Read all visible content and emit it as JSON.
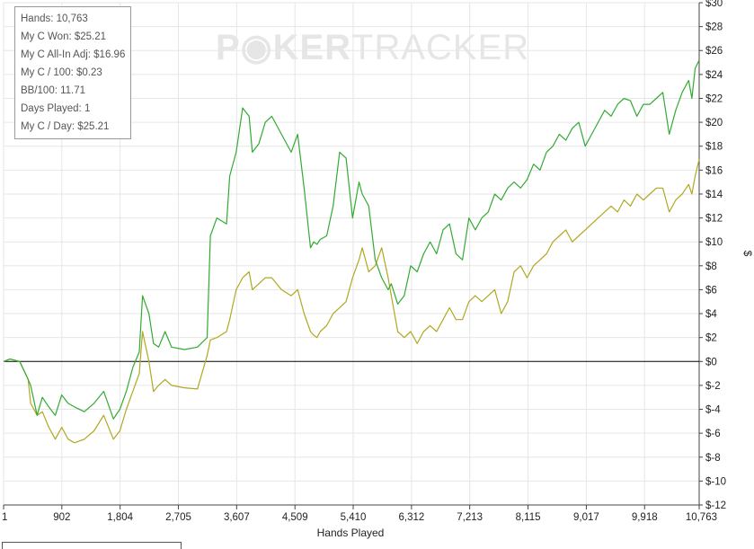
{
  "watermark": {
    "part1": "P",
    "part2": "KER",
    "part3": "TRACKER"
  },
  "stats": {
    "hands": "Hands: 10,763",
    "won": "My C Won: $25.21",
    "allin": "My C All-In Adj: $16.96",
    "per100": "My C / 100: $0.23",
    "bb100": "BB/100: 11.71",
    "days": "Days Played: 1",
    "perday": "My C / Day: $25.21"
  },
  "chart_data": {
    "type": "line",
    "xlabel": "Hands Played",
    "ylabel": "$",
    "xlim": [
      1,
      10763
    ],
    "ylim": [
      -12,
      30
    ],
    "x_ticks": [
      1,
      902,
      1804,
      2705,
      3607,
      4509,
      5410,
      6312,
      7213,
      8115,
      9017,
      9918,
      10763
    ],
    "x_tick_labels": [
      "1",
      "902",
      "1,804",
      "2,705",
      "3,607",
      "4,509",
      "5,410",
      "6,312",
      "7,213",
      "8,115",
      "9,017",
      "9,918",
      "10,763"
    ],
    "y_ticks": [
      30,
      28,
      26,
      24,
      22,
      20,
      18,
      16,
      14,
      12,
      10,
      8,
      6,
      4,
      2,
      0,
      -2,
      -4,
      -6,
      -8,
      -10,
      -12
    ],
    "y_tick_labels": [
      "$30",
      "$28",
      "$26",
      "$24",
      "$22",
      "$20",
      "$18",
      "$16",
      "$14",
      "$12",
      "$10",
      "$8",
      "$6",
      "$4",
      "$2",
      "$0",
      "$-2",
      "$-4",
      "$-6",
      "$-8",
      "$-10",
      "$-12"
    ],
    "grid": true,
    "colors": {
      "won": "#33aa33",
      "allin": "#b0a820",
      "zero_line": "#000000",
      "grid": "#e6e6e6"
    },
    "series": [
      {
        "key": "won",
        "x": [
          1,
          100,
          250,
          380,
          420,
          520,
          600,
          700,
          800,
          900,
          1000,
          1100,
          1250,
          1400,
          1550,
          1700,
          1800,
          1900,
          2000,
          2100,
          2150,
          2250,
          2320,
          2400,
          2500,
          2600,
          2800,
          3000,
          3150,
          3200,
          3300,
          3450,
          3500,
          3600,
          3700,
          3800,
          3850,
          3950,
          4050,
          4150,
          4300,
          4450,
          4550,
          4650,
          4750,
          4800,
          4850,
          4900,
          5000,
          5100,
          5200,
          5300,
          5400,
          5500,
          5550,
          5650,
          5750,
          5850,
          5950,
          6000,
          6100,
          6200,
          6300,
          6400,
          6500,
          6600,
          6700,
          6800,
          6900,
          7000,
          7100,
          7200,
          7300,
          7400,
          7500,
          7600,
          7700,
          7800,
          7900,
          8000,
          8100,
          8200,
          8300,
          8400,
          8500,
          8600,
          8700,
          8800,
          8900,
          9000,
          9100,
          9200,
          9300,
          9400,
          9500,
          9600,
          9700,
          9800,
          9900,
          10000,
          10100,
          10200,
          10300,
          10400,
          10500,
          10600,
          10650,
          10700,
          10763
        ],
        "y": [
          0,
          0.2,
          0,
          -1.5,
          -2,
          -4.5,
          -3,
          -3.8,
          -4.5,
          -2.8,
          -3.5,
          -3.8,
          -4.2,
          -3.5,
          -2.5,
          -4.8,
          -4,
          -2.5,
          -0.5,
          0.8,
          5.5,
          4,
          1.5,
          1.2,
          2.5,
          1.2,
          1,
          1.2,
          2,
          10.5,
          12,
          11.5,
          15.5,
          17.5,
          21.2,
          20.5,
          17.5,
          18.2,
          20,
          20.5,
          19,
          17.5,
          19,
          14.5,
          9.5,
          10,
          9.8,
          10.2,
          10.5,
          13,
          17.5,
          17,
          12,
          15,
          14,
          13,
          8.5,
          7,
          6,
          6.5,
          4.8,
          5.5,
          8,
          7.5,
          9,
          10,
          9,
          11,
          11.5,
          9,
          8.5,
          12,
          11,
          12,
          12.5,
          14,
          13.5,
          14.5,
          15,
          14.5,
          15.2,
          16.5,
          16,
          17.5,
          18,
          19,
          18.5,
          19.5,
          20,
          18,
          19,
          20,
          21,
          20.5,
          21.5,
          22,
          21.8,
          20.5,
          21.5,
          21.5,
          22,
          22.5,
          19,
          21,
          22.5,
          23.5,
          22,
          24.5,
          25.2
        ]
      },
      {
        "key": "allin",
        "x": [
          1,
          100,
          250,
          380,
          420,
          520,
          600,
          700,
          800,
          900,
          1000,
          1100,
          1250,
          1400,
          1550,
          1700,
          1800,
          1900,
          2000,
          2100,
          2150,
          2250,
          2320,
          2400,
          2500,
          2600,
          2800,
          3000,
          3150,
          3200,
          3300,
          3450,
          3500,
          3600,
          3700,
          3800,
          3850,
          3950,
          4050,
          4150,
          4300,
          4450,
          4550,
          4650,
          4750,
          4800,
          4850,
          4900,
          5000,
          5100,
          5200,
          5300,
          5400,
          5500,
          5550,
          5650,
          5750,
          5850,
          5950,
          6000,
          6100,
          6200,
          6300,
          6400,
          6500,
          6600,
          6700,
          6800,
          6900,
          7000,
          7100,
          7200,
          7300,
          7400,
          7500,
          7600,
          7700,
          7800,
          7900,
          8000,
          8100,
          8200,
          8300,
          8400,
          8500,
          8600,
          8700,
          8800,
          8900,
          9000,
          9100,
          9200,
          9300,
          9400,
          9500,
          9600,
          9700,
          9800,
          9900,
          10000,
          10100,
          10200,
          10300,
          10400,
          10500,
          10600,
          10650,
          10700,
          10763
        ],
        "y": [
          0,
          0.2,
          0,
          -1.5,
          -3.5,
          -4.5,
          -4.2,
          -5.5,
          -6.5,
          -5.5,
          -6.5,
          -6.8,
          -6.5,
          -5.8,
          -4.5,
          -6.5,
          -5.8,
          -4,
          -2.5,
          -1,
          2.5,
          0,
          -2.5,
          -2,
          -1.5,
          -2,
          -2.2,
          -2.3,
          0.5,
          1.8,
          2,
          2.5,
          3.5,
          6,
          7,
          7.5,
          6,
          6.5,
          7,
          7,
          6,
          5.5,
          6,
          4,
          2.5,
          2.2,
          2,
          2.5,
          3,
          4,
          4.5,
          5,
          7,
          8.5,
          9.5,
          7.5,
          8,
          9.5,
          7,
          5.5,
          2.5,
          2,
          2.5,
          1.5,
          2.5,
          3,
          2.5,
          3.5,
          4.5,
          3.5,
          3.5,
          5,
          5.5,
          5,
          5.5,
          6,
          4,
          5,
          7.5,
          8,
          7,
          8,
          8.5,
          9,
          10,
          10.5,
          11,
          10,
          10.5,
          11,
          11.5,
          12,
          12.5,
          13,
          12.5,
          13.5,
          13,
          14,
          13.5,
          14,
          14.5,
          14.5,
          12.5,
          13.5,
          14,
          14.8,
          14,
          15.5,
          16.9
        ]
      }
    ]
  }
}
